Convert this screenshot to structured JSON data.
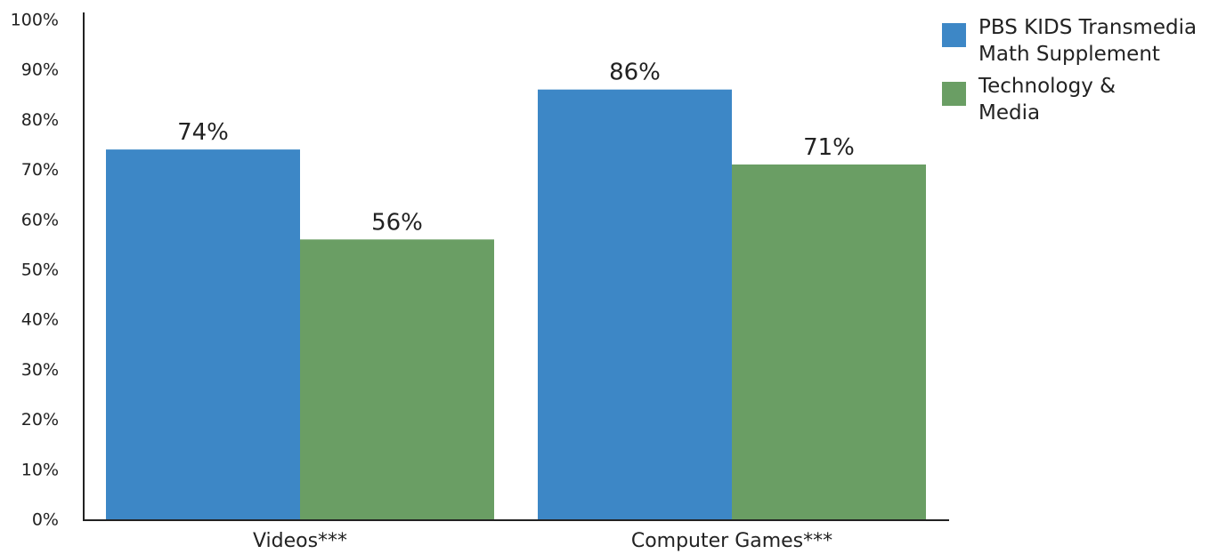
{
  "chart_data": {
    "type": "bar",
    "categories": [
      "Videos***",
      "Computer Games***"
    ],
    "series": [
      {
        "name": "PBS KIDS Transmedia\nMath Supplement",
        "values": [
          74,
          86
        ],
        "color": "#3d87c6"
      },
      {
        "name": "Technology &\nMedia",
        "values": [
          56,
          71
        ],
        "color": "#6a9e64"
      }
    ],
    "data_labels": [
      [
        "74%",
        "86%"
      ],
      [
        "56%",
        "71%"
      ]
    ],
    "y_ticks": [
      "0%",
      "10%",
      "20%",
      "30%",
      "40%",
      "50%",
      "60%",
      "70%",
      "80%",
      "90%",
      "100%"
    ],
    "ylim": [
      0,
      100
    ],
    "grid": false,
    "legend_position": "top-right",
    "title": "",
    "xlabel": "",
    "ylabel": ""
  }
}
